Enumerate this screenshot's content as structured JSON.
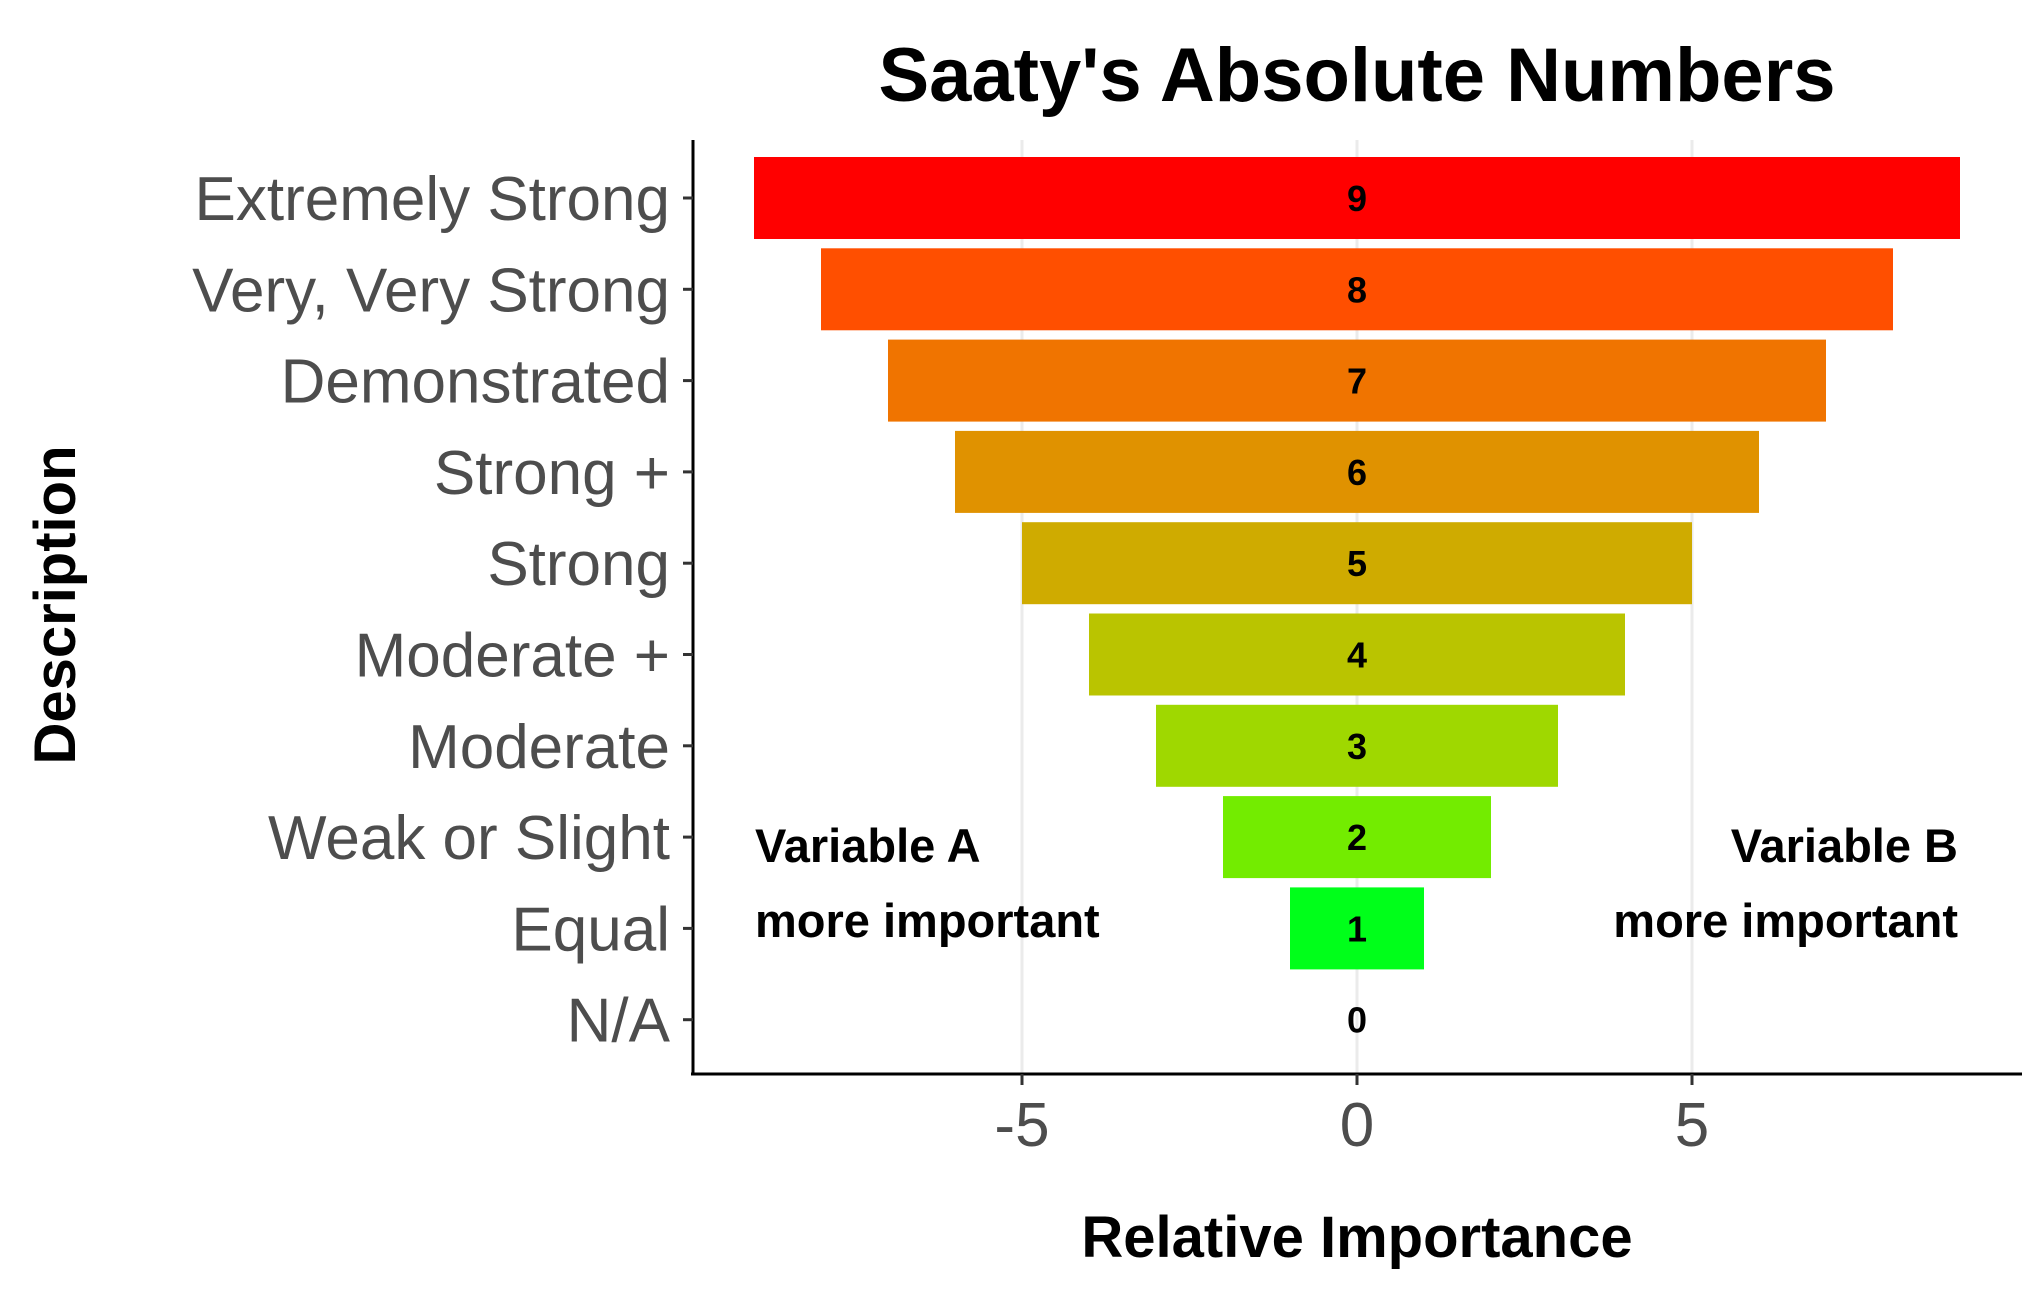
{
  "chart_data": {
    "type": "bar",
    "orientation": "horizontal",
    "title": "Saaty's Absolute Numbers",
    "xlabel": "Relative Importance",
    "ylabel": "Description",
    "xlim": [
      -9.9,
      9.9
    ],
    "x_ticks": [
      -5,
      0,
      5
    ],
    "x_tick_labels": [
      "-5",
      "0",
      "5"
    ],
    "grid": "vertical major gridlines only",
    "categories": [
      "Extremely Strong",
      "Very, Very Strong",
      "Demonstrated",
      "Strong +",
      "Strong",
      "Moderate +",
      "Moderate",
      "Weak or Slight",
      "Equal",
      "N/A"
    ],
    "values": [
      9,
      8,
      7,
      6,
      5,
      4,
      3,
      2,
      1,
      0
    ],
    "value_labels": [
      "9",
      "8",
      "7",
      "6",
      "5",
      "4",
      "3",
      "2",
      "1",
      "0"
    ],
    "bar_extent": "symmetric from -value to +value",
    "colors": [
      "#ff0000",
      "#ff4f00",
      "#f07400",
      "#e09200",
      "#cfab00",
      "#bac400",
      "#9fd800",
      "#73ec00",
      "#00ff1a",
      "#ffffff"
    ],
    "annotations": {
      "left_line1": "Variable A",
      "left_line2": "more important",
      "right_line1": "Variable B",
      "right_line2": "more important"
    }
  }
}
